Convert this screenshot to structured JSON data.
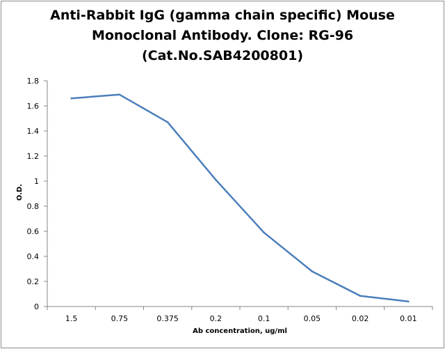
{
  "chart_data": {
    "type": "line",
    "title": [
      "Anti-Rabbit IgG (gamma chain specific) Mouse",
      "Monoclonal Antibody. Clone: RG-96",
      "(Cat.No.SAB4200801)"
    ],
    "xlabel": "Ab concentration, ug/ml",
    "ylabel": "O.D.",
    "categories": [
      "1.5",
      "0.75",
      "0.375",
      "0.2",
      "0.1",
      "0.05",
      "0.02",
      "0.01"
    ],
    "values": [
      1.66,
      1.69,
      1.47,
      1.01,
      0.59,
      0.28,
      0.085,
      0.04
    ],
    "ylim": [
      0,
      1.8
    ],
    "yticks": [
      "0",
      "0.2",
      "0.4",
      "0.6",
      "0.8",
      "1",
      "1.2",
      "1.4",
      "1.6",
      "1.8"
    ],
    "grid": false,
    "legend": "none",
    "line_color": "#4a7ebb"
  }
}
